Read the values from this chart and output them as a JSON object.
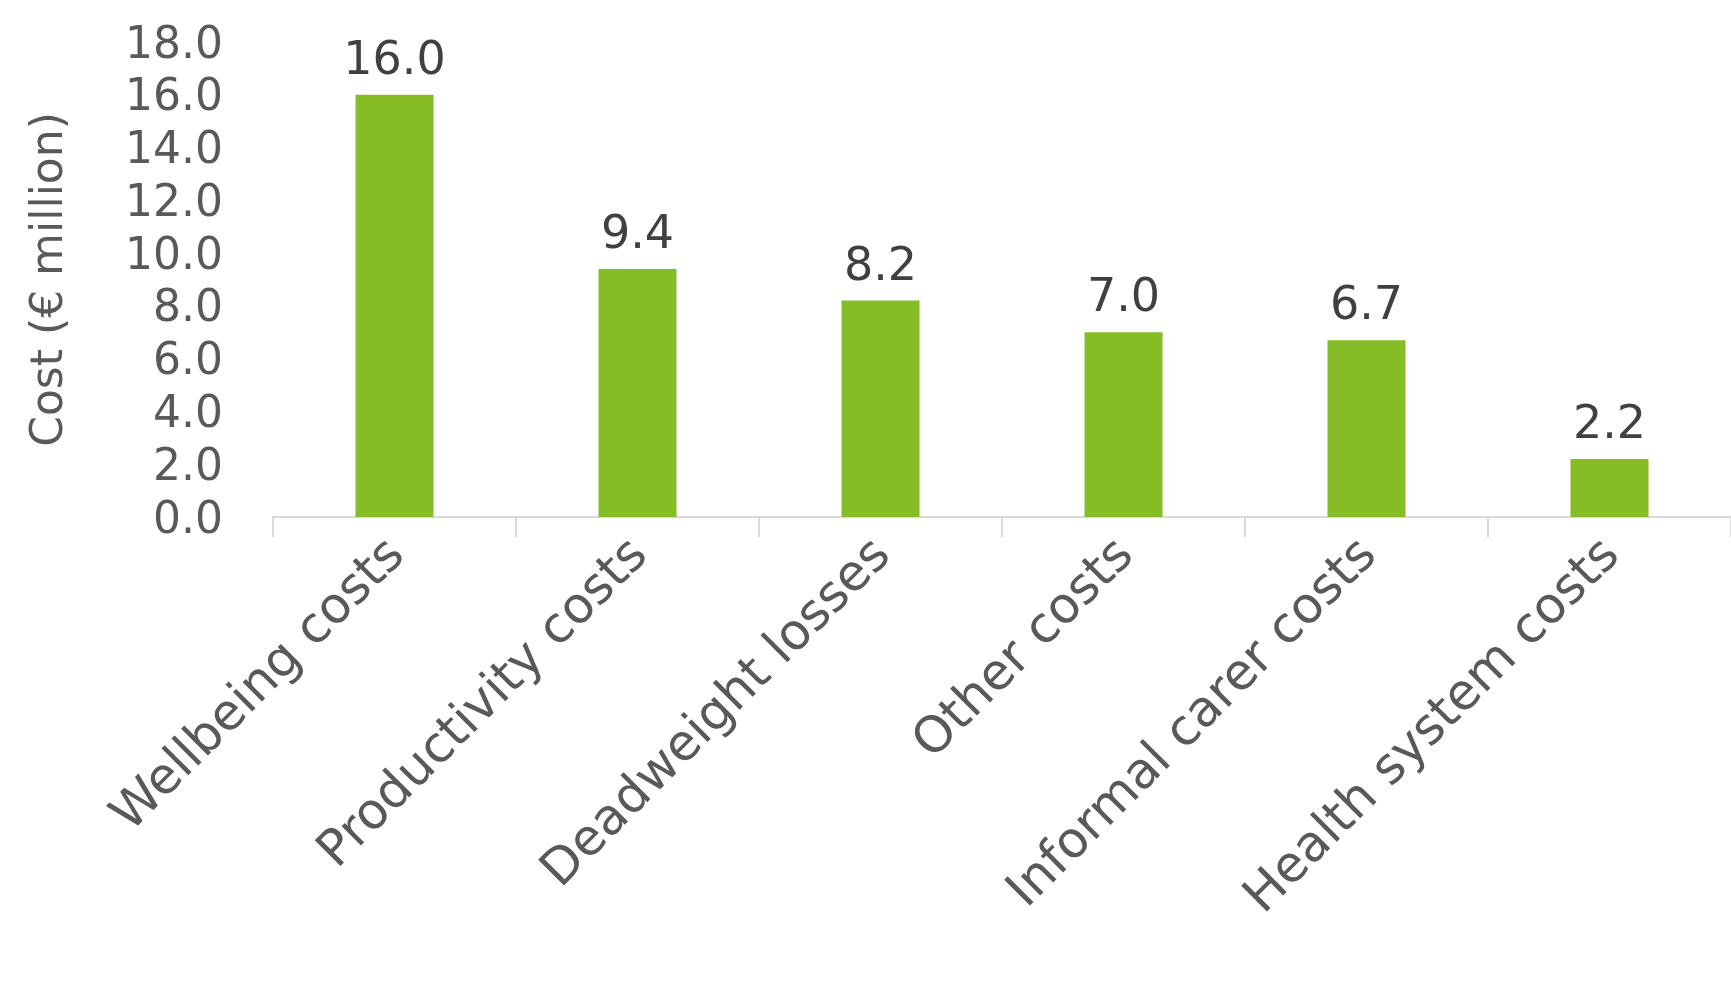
{
  "chart_data": {
    "type": "bar",
    "ylabel": "Cost (€ million)",
    "categories": [
      "Wellbeing costs",
      "Productivity costs",
      "Deadweight losses",
      "Other costs",
      "Informal carer costs",
      "Health system costs"
    ],
    "values": [
      16.0,
      9.4,
      8.2,
      7.0,
      6.7,
      2.2
    ],
    "value_labels": [
      "16.0",
      "9.4",
      "8.2",
      "7.0",
      "6.7",
      "2.2"
    ],
    "color": "#86bc25",
    "ylim": [
      0,
      18
    ],
    "yticks": [
      {
        "value": 0,
        "label": "0.0"
      },
      {
        "value": 2,
        "label": "2.0"
      },
      {
        "value": 4,
        "label": "4.0"
      },
      {
        "value": 6,
        "label": "6.0"
      },
      {
        "value": 8,
        "label": "8.0"
      },
      {
        "value": 10,
        "label": "10.0"
      },
      {
        "value": 12,
        "label": "12.0"
      },
      {
        "value": 14,
        "label": "14.0"
      },
      {
        "value": 16,
        "label": "16.0"
      },
      {
        "value": 18,
        "label": "18.0"
      }
    ],
    "grid": false
  }
}
